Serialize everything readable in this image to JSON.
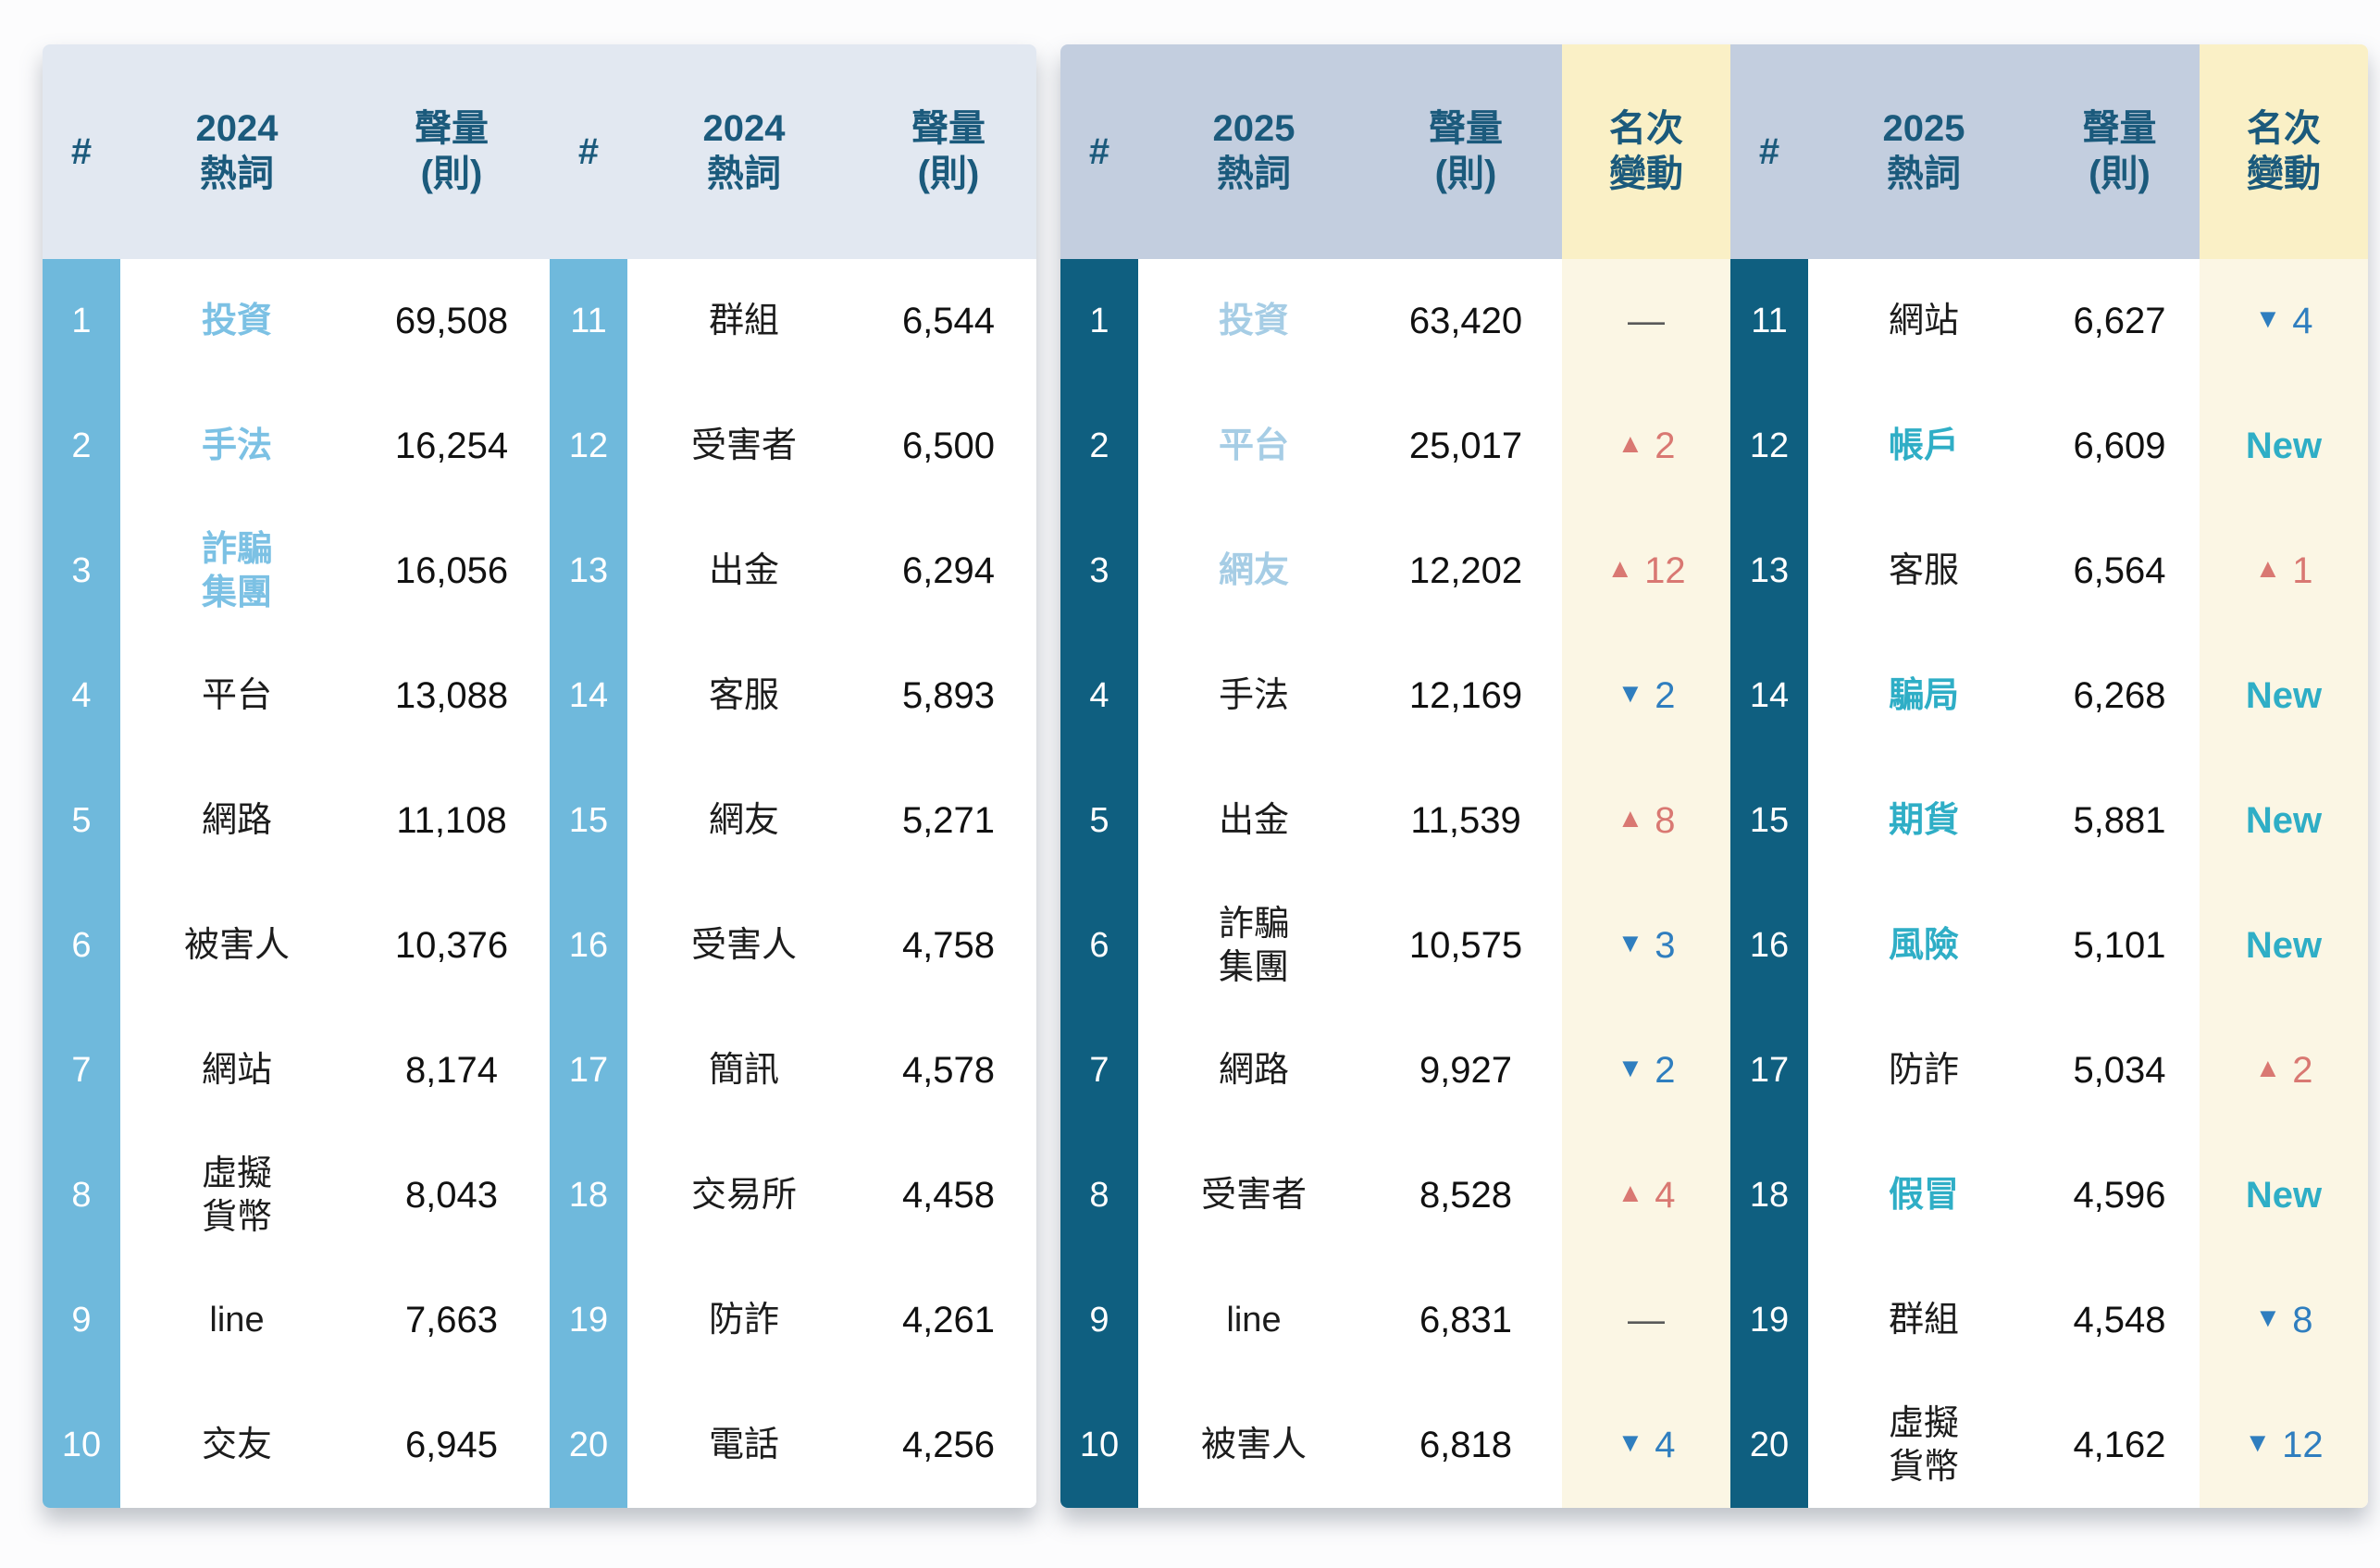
{
  "page": {
    "background": "#FCFCFD"
  },
  "colors": {
    "header_text": "#1B5A7C",
    "header_bg_2024": "#E2E8F1",
    "header_bg_2025": "#C3CEDF",
    "header_bg_change": "#FAF0C6",
    "rank_bg_2024": "#6FB9DC",
    "rank_bg_2025": "#0F5F80",
    "rank_text": "#FFFFFF",
    "change_bg": "#FBF6E4",
    "highlight_word_2024": "#7CC1E4",
    "highlight_word_2025": "#A6CDE5",
    "new_word": "#2FAEC6",
    "up": "#D97872",
    "down": "#2F7EBF",
    "no_change": "#595959",
    "body_text": "#111111"
  },
  "glyphs": {
    "up": "▲",
    "down": "▼",
    "new": "New",
    "same": "—"
  },
  "chart_data": [
    {
      "type": "table",
      "title": "2024 熱詞聲量排行",
      "columns": {
        "rank": "#",
        "word": "2024\n熱詞",
        "volume": "聲量\n(則)"
      },
      "rows": [
        {
          "rank": "1",
          "word": "投資",
          "volume": "69,508",
          "highlight": true
        },
        {
          "rank": "2",
          "word": "手法",
          "volume": "16,254",
          "highlight": true
        },
        {
          "rank": "3",
          "word": "詐騙\n集團",
          "volume": "16,056",
          "highlight": true
        },
        {
          "rank": "4",
          "word": "平台",
          "volume": "13,088"
        },
        {
          "rank": "5",
          "word": "網路",
          "volume": "11,108"
        },
        {
          "rank": "6",
          "word": "被害人",
          "volume": "10,376"
        },
        {
          "rank": "7",
          "word": "網站",
          "volume": "8,174"
        },
        {
          "rank": "8",
          "word": "虛擬\n貨幣",
          "volume": "8,043"
        },
        {
          "rank": "9",
          "word": "line",
          "volume": "7,663"
        },
        {
          "rank": "10",
          "word": "交友",
          "volume": "6,945"
        },
        {
          "rank": "11",
          "word": "群組",
          "volume": "6,544"
        },
        {
          "rank": "12",
          "word": "受害者",
          "volume": "6,500"
        },
        {
          "rank": "13",
          "word": "出金",
          "volume": "6,294"
        },
        {
          "rank": "14",
          "word": "客服",
          "volume": "5,893"
        },
        {
          "rank": "15",
          "word": "網友",
          "volume": "5,271"
        },
        {
          "rank": "16",
          "word": "受害人",
          "volume": "4,758"
        },
        {
          "rank": "17",
          "word": "簡訊",
          "volume": "4,578"
        },
        {
          "rank": "18",
          "word": "交易所",
          "volume": "4,458"
        },
        {
          "rank": "19",
          "word": "防詐",
          "volume": "4,261"
        },
        {
          "rank": "20",
          "word": "電話",
          "volume": "4,256"
        }
      ]
    },
    {
      "type": "table",
      "title": "2025 熱詞聲量排行與名次變動",
      "columns": {
        "rank": "#",
        "word": "2025\n熱詞",
        "volume": "聲量\n(則)",
        "change": "名次\n變動"
      },
      "rows": [
        {
          "rank": "1",
          "word": "投資",
          "volume": "63,420",
          "highlight": true,
          "change": {
            "type": "same"
          }
        },
        {
          "rank": "2",
          "word": "平台",
          "volume": "25,017",
          "highlight": true,
          "change": {
            "type": "up",
            "value": "2"
          }
        },
        {
          "rank": "3",
          "word": "網友",
          "volume": "12,202",
          "highlight": true,
          "change": {
            "type": "up",
            "value": "12"
          }
        },
        {
          "rank": "4",
          "word": "手法",
          "volume": "12,169",
          "change": {
            "type": "down",
            "value": "2"
          }
        },
        {
          "rank": "5",
          "word": "出金",
          "volume": "11,539",
          "change": {
            "type": "up",
            "value": "8"
          }
        },
        {
          "rank": "6",
          "word": "詐騙\n集團",
          "volume": "10,575",
          "change": {
            "type": "down",
            "value": "3"
          }
        },
        {
          "rank": "7",
          "word": "網路",
          "volume": "9,927",
          "change": {
            "type": "down",
            "value": "2"
          }
        },
        {
          "rank": "8",
          "word": "受害者",
          "volume": "8,528",
          "change": {
            "type": "up",
            "value": "4"
          }
        },
        {
          "rank": "9",
          "word": "line",
          "volume": "6,831",
          "change": {
            "type": "same"
          }
        },
        {
          "rank": "10",
          "word": "被害人",
          "volume": "6,818",
          "change": {
            "type": "down",
            "value": "4"
          }
        },
        {
          "rank": "11",
          "word": "網站",
          "volume": "6,627",
          "change": {
            "type": "down",
            "value": "4"
          }
        },
        {
          "rank": "12",
          "word": "帳戶",
          "volume": "6,609",
          "new_word": true,
          "change": {
            "type": "new"
          }
        },
        {
          "rank": "13",
          "word": "客服",
          "volume": "6,564",
          "change": {
            "type": "up",
            "value": "1"
          }
        },
        {
          "rank": "14",
          "word": "騙局",
          "volume": "6,268",
          "new_word": true,
          "change": {
            "type": "new"
          }
        },
        {
          "rank": "15",
          "word": "期貨",
          "volume": "5,881",
          "new_word": true,
          "change": {
            "type": "new"
          }
        },
        {
          "rank": "16",
          "word": "風險",
          "volume": "5,101",
          "new_word": true,
          "change": {
            "type": "new"
          }
        },
        {
          "rank": "17",
          "word": "防詐",
          "volume": "5,034",
          "change": {
            "type": "up",
            "value": "2"
          }
        },
        {
          "rank": "18",
          "word": "假冒",
          "volume": "4,596",
          "new_word": true,
          "change": {
            "type": "new"
          }
        },
        {
          "rank": "19",
          "word": "群組",
          "volume": "4,548",
          "change": {
            "type": "down",
            "value": "8"
          }
        },
        {
          "rank": "20",
          "word": "虛擬\n貨幣",
          "volume": "4,162",
          "change": {
            "type": "down",
            "value": "12"
          }
        }
      ]
    }
  ]
}
